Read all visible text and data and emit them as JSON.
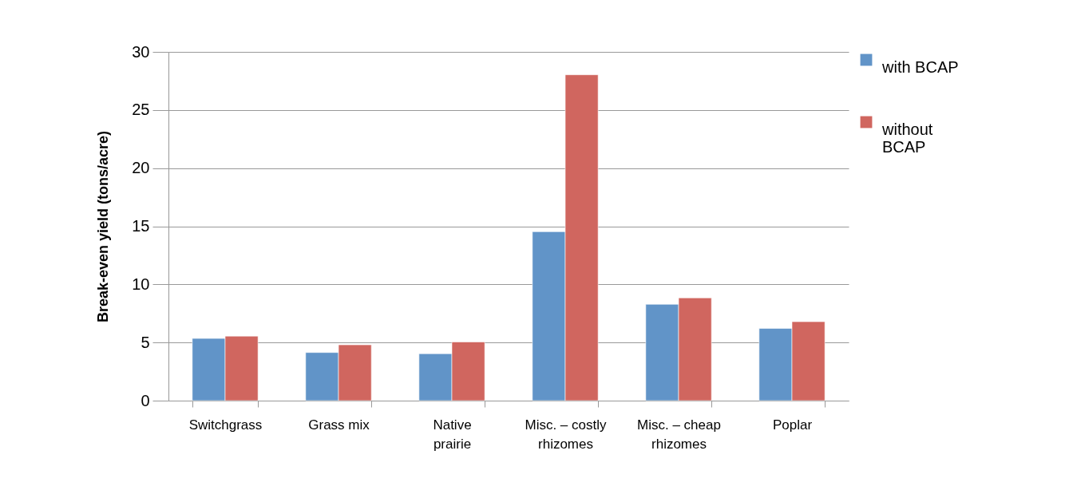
{
  "chart_data": {
    "type": "bar",
    "ylabel": "Break-even yield (tons/acre)",
    "categories": [
      "Switchgrass",
      "Grass mix",
      "Native prairie",
      "Misc. – costly rhizomes",
      "Misc. – cheap rhizomes",
      "Poplar"
    ],
    "series": [
      {
        "name": "with BCAP",
        "color": "#6194c8",
        "values": [
          5.35,
          4.14,
          4.04,
          14.53,
          8.29,
          6.21
        ]
      },
      {
        "name": "without BCAP",
        "color": "#d0665f",
        "values": [
          5.55,
          4.8,
          5.05,
          28.03,
          8.84,
          6.79
        ]
      }
    ],
    "ylim": [
      0,
      30
    ],
    "yticks": [
      0,
      5,
      10,
      15,
      20,
      25,
      30
    ],
    "grid": "y",
    "legend": "right"
  }
}
